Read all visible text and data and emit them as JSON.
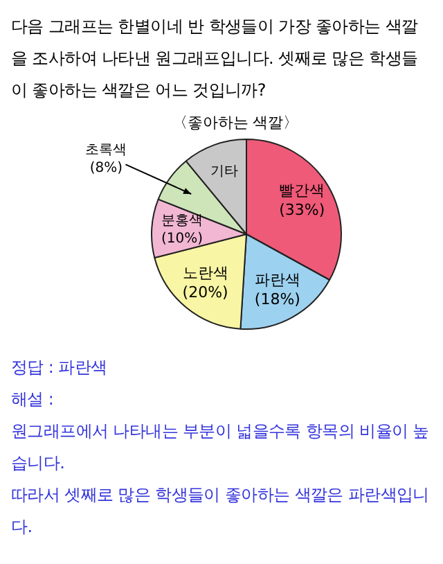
{
  "chart_data": {
    "type": "pie",
    "title": "〈좋아하는 색깔〉",
    "categories": [
      "빨간색",
      "파란색",
      "노란색",
      "분홍색",
      "초록색",
      "기타"
    ],
    "values": [
      33,
      18,
      20,
      10,
      8,
      11
    ],
    "value_labels": [
      "(33%)",
      "(18%)",
      "(20%)",
      "(10%)",
      "(8%)",
      null
    ],
    "colors": [
      "#ef5a78",
      "#9dd1f0",
      "#f8f5a4",
      "#f2b7d3",
      "#cde5b8",
      "#c8c8c8"
    ],
    "annotations": [
      "다음 그래프는 한별이네 반 학생들이 가장 좋아하는 색깔을 조사하여 나타낸 원그래프입니다. 셋째로 많은 학생들이 좋아하는 색깔은 어느 것입니까?",
      "정답 : 파란색",
      "해설 :",
      "원그래프에서 나타내는 부분이 넓을수록 항목의 비율이 높습니다.",
      "따라서 셋째로 많은 학생들이 좋아하는 색깔은 파란색입니다."
    ]
  }
}
